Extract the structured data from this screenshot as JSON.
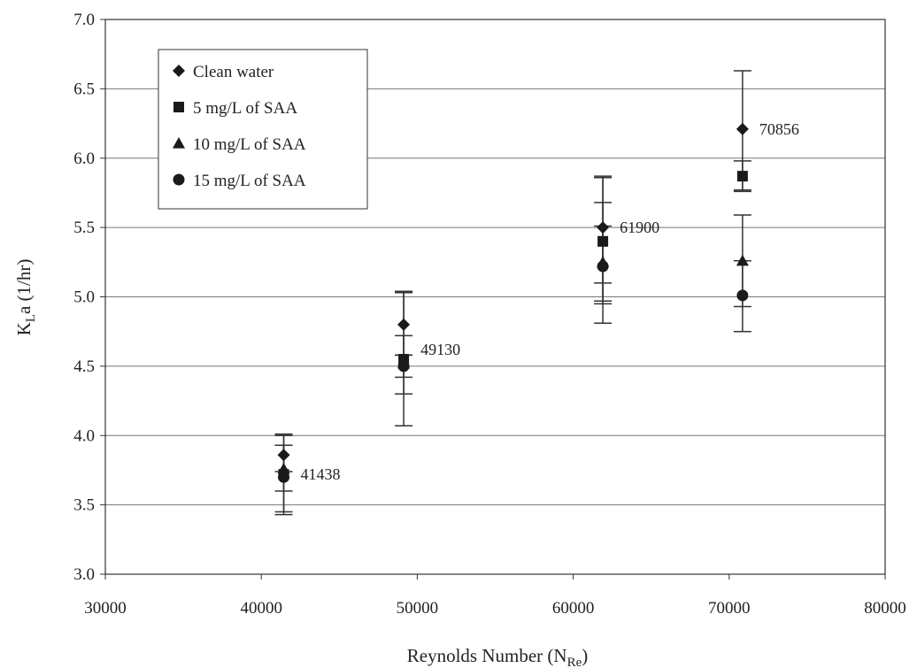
{
  "chart_data": {
    "type": "scatter",
    "title": "",
    "xlabel": "Reynolds Number (N",
    "xlabel_sub": "Re",
    "xlabel_close": ")",
    "ylabel": "K",
    "ylabel_sub": "L",
    "ylabel_rest": "a (1/hr)",
    "xlim": [
      30000,
      80000
    ],
    "ylim": [
      3.0,
      7.0
    ],
    "x_ticks": [
      30000,
      40000,
      50000,
      60000,
      70000,
      80000
    ],
    "y_ticks": [
      3.0,
      3.5,
      4.0,
      4.5,
      5.0,
      5.5,
      6.0,
      6.5,
      7.0
    ],
    "x_tick_labels": [
      "30000",
      "40000",
      "50000",
      "60000",
      "70000",
      "80000"
    ],
    "y_tick_labels": [
      "3.0",
      "3.5",
      "4.0",
      "4.5",
      "5.0",
      "5.5",
      "6.0",
      "6.5",
      "7.0"
    ],
    "grid": "horizontal",
    "legend_position": "top-left",
    "series": [
      {
        "name": "Clean water",
        "marker": "diamond",
        "points": [
          {
            "x": 41438,
            "y": 3.86,
            "err_low": 3.74,
            "err_high": 4.0
          },
          {
            "x": 49130,
            "y": 4.8,
            "err_low": 4.58,
            "err_high": 5.03
          },
          {
            "x": 61900,
            "y": 5.5,
            "err_low": 5.1,
            "err_high": 5.87
          },
          {
            "x": 70856,
            "y": 6.21,
            "err_low": 5.77,
            "err_high": 6.63
          }
        ]
      },
      {
        "name": "5 mg/L of SAA",
        "marker": "square",
        "points": [
          {
            "x": 41438,
            "y": 3.72,
            "err_low": 3.43,
            "err_high": 4.01
          },
          {
            "x": 49130,
            "y": 4.55,
            "err_low": 4.07,
            "err_high": 5.04
          },
          {
            "x": 61900,
            "y": 5.4,
            "err_low": 4.95,
            "err_high": 5.86
          },
          {
            "x": 70856,
            "y": 5.87,
            "err_low": 5.76,
            "err_high": 5.98
          }
        ]
      },
      {
        "name": "10 mg/L of SAA",
        "marker": "triangle",
        "points": [
          {
            "x": 41438,
            "y": 3.76,
            "err_low": 3.6,
            "err_high": 3.93
          },
          {
            "x": 49130,
            "y": 4.52,
            "err_low": 4.3,
            "err_high": 4.72
          },
          {
            "x": 61900,
            "y": 5.25,
            "err_low": 4.97,
            "err_high": 5.51
          },
          {
            "x": 70856,
            "y": 5.26,
            "err_low": 4.93,
            "err_high": 5.59
          }
        ]
      },
      {
        "name": "15 mg/L of SAA",
        "marker": "circle",
        "points": [
          {
            "x": 41438,
            "y": 3.7,
            "err_low": 3.45,
            "err_high": 3.93
          },
          {
            "x": 49130,
            "y": 4.5,
            "err_low": 4.42,
            "err_high": 4.58
          },
          {
            "x": 61900,
            "y": 5.22,
            "err_low": 4.81,
            "err_high": 5.68
          },
          {
            "x": 70856,
            "y": 5.01,
            "err_low": 4.75,
            "err_high": 5.26
          }
        ]
      }
    ],
    "annotations": [
      {
        "text": "41438",
        "x": 41438,
        "y": 3.72
      },
      {
        "text": "49130",
        "x": 49130,
        "y": 4.62
      },
      {
        "text": "61900",
        "x": 61900,
        "y": 5.5
      },
      {
        "text": "70856",
        "x": 70856,
        "y": 6.21
      }
    ]
  }
}
